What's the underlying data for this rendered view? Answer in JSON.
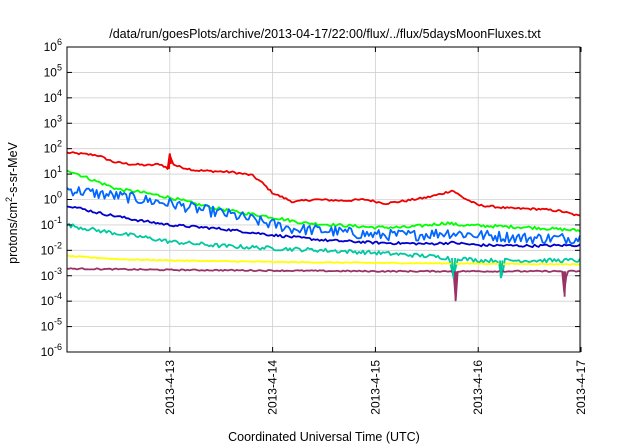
{
  "chart_data": {
    "type": "line",
    "title": "/data/run/goesPlots/archive/2013-04-17/22:00/flux/../flux/5daysMoonFluxes.txt",
    "xlabel": "Coordinated Universal Time (UTC)",
    "ylabel_main": "protons/cm",
    "ylabel_sup": "2",
    "ylabel_rest": "-s-sr-MeV",
    "x_unit": "days since 2013-04-12 00:00 UTC",
    "xlim": [
      1.0,
      5.99
    ],
    "y_scale": "log",
    "ylim": [
      1e-06,
      1000000.0
    ],
    "y_ticks": [
      {
        "base": "10",
        "exp": "-6"
      },
      {
        "base": "10",
        "exp": "-5"
      },
      {
        "base": "10",
        "exp": "-4"
      },
      {
        "base": "10",
        "exp": "-3"
      },
      {
        "base": "10",
        "exp": "-2"
      },
      {
        "base": "10",
        "exp": "-1"
      },
      {
        "base": "10",
        "exp": "0"
      },
      {
        "base": "10",
        "exp": "1"
      },
      {
        "base": "10",
        "exp": "2"
      },
      {
        "base": "10",
        "exp": "3"
      },
      {
        "base": "10",
        "exp": "4"
      },
      {
        "base": "10",
        "exp": "5"
      },
      {
        "base": "10",
        "exp": "6"
      }
    ],
    "x_ticks": [
      "2013-4-13",
      "2013-4-14",
      "2013-4-15",
      "2013-4-16",
      "2013-4-17"
    ],
    "grid": true,
    "legend": "none",
    "series": [
      {
        "color": "#ee0000",
        "noise": 0.04,
        "points": [
          [
            1.0,
            70
          ],
          [
            1.3,
            55
          ],
          [
            1.45,
            30
          ],
          [
            1.6,
            25
          ],
          [
            1.8,
            22
          ],
          [
            1.9,
            25
          ],
          [
            1.95,
            20
          ],
          [
            1.98,
            16
          ],
          [
            2.0,
            65
          ],
          [
            2.03,
            25
          ],
          [
            2.08,
            20
          ],
          [
            2.25,
            14
          ],
          [
            2.6,
            12
          ],
          [
            2.8,
            9
          ],
          [
            2.9,
            4.5
          ],
          [
            3.0,
            1.8
          ],
          [
            3.2,
            0.8
          ],
          [
            3.4,
            1.0
          ],
          [
            3.7,
            0.9
          ],
          [
            3.9,
            1.0
          ],
          [
            4.1,
            0.7
          ],
          [
            4.3,
            0.9
          ],
          [
            4.5,
            1.2
          ],
          [
            4.65,
            1.7
          ],
          [
            4.75,
            2.3
          ],
          [
            4.85,
            1.2
          ],
          [
            5.0,
            0.6
          ],
          [
            5.3,
            0.45
          ],
          [
            5.6,
            0.42
          ],
          [
            5.8,
            0.35
          ],
          [
            5.99,
            0.22
          ]
        ]
      },
      {
        "color": "#00ff00",
        "noise": 0.06,
        "points": [
          [
            1.0,
            15
          ],
          [
            1.2,
            7
          ],
          [
            1.5,
            2.5
          ],
          [
            1.7,
            2.0
          ],
          [
            2.0,
            1.2
          ],
          [
            2.3,
            0.6
          ],
          [
            2.6,
            0.35
          ],
          [
            3.0,
            0.2
          ],
          [
            3.3,
            0.12
          ],
          [
            3.6,
            0.1
          ],
          [
            4.0,
            0.08
          ],
          [
            4.3,
            0.08
          ],
          [
            4.7,
            0.12
          ],
          [
            4.8,
            0.1
          ],
          [
            5.1,
            0.09
          ],
          [
            5.5,
            0.08
          ],
          [
            5.99,
            0.06
          ]
        ]
      },
      {
        "color": "#0066ff",
        "noise": 0.22,
        "points": [
          [
            1.0,
            2.5
          ],
          [
            1.3,
            1.7
          ],
          [
            1.6,
            1.2
          ],
          [
            1.8,
            0.9
          ],
          [
            2.0,
            0.7
          ],
          [
            2.3,
            0.4
          ],
          [
            2.6,
            0.25
          ],
          [
            2.9,
            0.13
          ],
          [
            3.2,
            0.07
          ],
          [
            3.5,
            0.06
          ],
          [
            4.0,
            0.04
          ],
          [
            4.4,
            0.04
          ],
          [
            4.7,
            0.05
          ],
          [
            5.0,
            0.04
          ],
          [
            5.5,
            0.03
          ],
          [
            5.99,
            0.03
          ]
        ]
      },
      {
        "color": "#0000cc",
        "noise": 0.05,
        "points": [
          [
            1.0,
            0.6
          ],
          [
            1.3,
            0.3
          ],
          [
            1.7,
            0.15
          ],
          [
            2.0,
            0.1
          ],
          [
            2.5,
            0.07
          ],
          [
            3.0,
            0.04
          ],
          [
            3.5,
            0.025
          ],
          [
            4.0,
            0.02
          ],
          [
            4.5,
            0.018
          ],
          [
            4.75,
            0.02
          ],
          [
            5.0,
            0.016
          ],
          [
            5.5,
            0.015
          ],
          [
            5.99,
            0.016
          ]
        ]
      },
      {
        "color": "#00c8a0",
        "noise": 0.08,
        "points": [
          [
            1.0,
            0.1
          ],
          [
            1.3,
            0.06
          ],
          [
            1.7,
            0.035
          ],
          [
            2.0,
            0.022
          ],
          [
            2.5,
            0.015
          ],
          [
            3.0,
            0.012
          ],
          [
            3.5,
            0.01
          ],
          [
            4.0,
            0.008
          ],
          [
            4.5,
            0.006
          ],
          [
            4.72,
            0.005
          ],
          [
            4.76,
            0.0008
          ],
          [
            4.8,
            0.005
          ],
          [
            5.0,
            0.004
          ],
          [
            5.2,
            0.004
          ],
          [
            5.22,
            0.0008
          ],
          [
            5.26,
            0.004
          ],
          [
            5.5,
            0.004
          ],
          [
            5.99,
            0.004
          ]
        ]
      },
      {
        "color": "#ffff00",
        "noise": 0.02,
        "points": [
          [
            1.0,
            0.006
          ],
          [
            1.5,
            0.0045
          ],
          [
            2.0,
            0.004
          ],
          [
            3.0,
            0.0035
          ],
          [
            4.0,
            0.0032
          ],
          [
            5.0,
            0.003
          ],
          [
            5.99,
            0.0028
          ]
        ]
      },
      {
        "color": "#993366",
        "noise": 0.025,
        "points": [
          [
            1.0,
            0.0019
          ],
          [
            2.0,
            0.0017
          ],
          [
            3.0,
            0.0016
          ],
          [
            4.0,
            0.0015
          ],
          [
            4.76,
            0.0015
          ],
          [
            4.78,
            0.0001
          ],
          [
            4.8,
            0.0015
          ],
          [
            5.5,
            0.0015
          ],
          [
            5.82,
            0.0015
          ],
          [
            5.84,
            0.00015
          ],
          [
            5.86,
            0.0015
          ],
          [
            5.99,
            0.0015
          ]
        ]
      }
    ]
  }
}
